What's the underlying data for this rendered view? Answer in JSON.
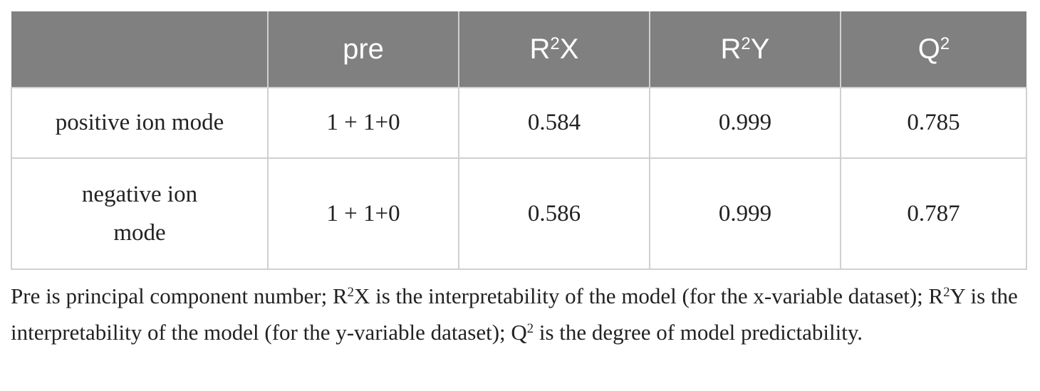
{
  "table": {
    "header": [
      [
        "pre"
      ],
      [
        "R",
        "2",
        "X"
      ],
      [
        "R",
        "2",
        "Y"
      ],
      [
        "Q",
        "2"
      ]
    ],
    "rows": [
      [
        "positive ion mode",
        "1 + 1+0",
        "0.584",
        "0.999",
        "0.785"
      ],
      [
        "negative ion mode",
        "1 + 1+0",
        "0.586",
        "0.999",
        "0.787"
      ]
    ]
  },
  "note": [
    "Pre is principal component number; R",
    "2",
    "X is the interpretability of the model (for the x-variable dataset); R",
    "2",
    "Y is the interpretability of the model (for the y-variable dataset); Q",
    "2",
    " is the degree of model predictability."
  ]
}
